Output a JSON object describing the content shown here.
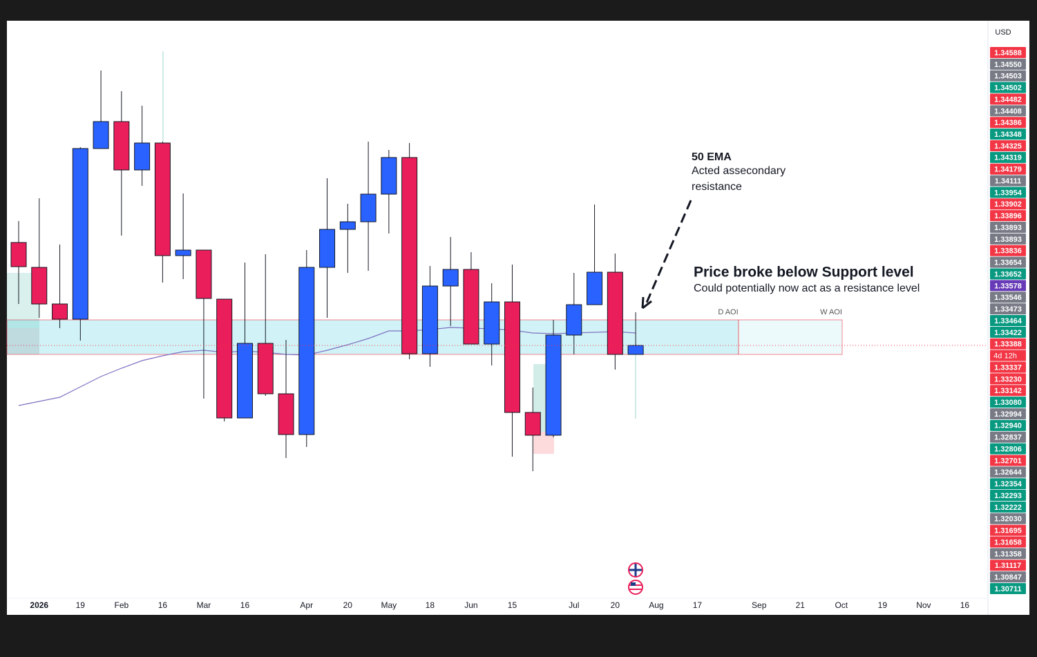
{
  "chart_data": {
    "type": "candlestick",
    "currency": "USD",
    "categories": [
      null,
      "2026",
      null,
      "19",
      null,
      "Feb",
      null,
      "16",
      null,
      "Mar",
      null,
      "16",
      null,
      null,
      "Apr",
      null,
      "20",
      null,
      "May",
      null,
      "18",
      null,
      "Jun",
      null,
      "15",
      null,
      null,
      "Jul",
      null,
      "20",
      null,
      "Aug",
      null,
      "17",
      null,
      null,
      "Sep",
      null,
      "21",
      null,
      "Oct",
      null,
      "19",
      null,
      "Nov",
      null,
      "16",
      null
    ],
    "open": [
      1.34582,
      1.34294,
      1.3387,
      1.33694,
      1.3567,
      1.35982,
      1.35422,
      1.35734,
      1.3443,
      1.34494,
      1.33926,
      1.3255,
      1.33414,
      1.3283,
      1.32358,
      1.34294,
      1.34734,
      1.34822,
      1.35142,
      1.35566,
      1.33294,
      1.34078,
      1.3427,
      1.33406,
      1.33894,
      1.32614,
      1.3235,
      1.3351,
      1.33862,
      1.34238,
      1.33286,
      null,
      null,
      null,
      null,
      null,
      null,
      null,
      null,
      null,
      null,
      null,
      null,
      null,
      null,
      null,
      null,
      null
    ],
    "high": [
      1.3483,
      1.35094,
      1.34558,
      1.35686,
      1.36574,
      1.36334,
      1.36166,
      1.3575,
      1.3515,
      1.34494,
      1.33926,
      1.3435,
      1.34446,
      1.33454,
      1.34494,
      1.35326,
      1.3503,
      1.3575,
      1.35654,
      1.35734,
      1.3431,
      1.34646,
      1.3447,
      1.3411,
      1.34326,
      1.32902,
      1.33686,
      1.3423,
      1.35022,
      1.34454,
      1.33774,
      null,
      null,
      null,
      null,
      null,
      null,
      null,
      null,
      null,
      null,
      null,
      null,
      null,
      null,
      null,
      null,
      null
    ],
    "low": [
      1.3387,
      1.3371,
      1.3359,
      1.33446,
      1.3567,
      1.34662,
      1.35238,
      1.34118,
      1.34158,
      1.32774,
      1.3251,
      1.3255,
      1.32806,
      1.32086,
      1.32214,
      1.3371,
      1.3423,
      1.34254,
      1.34686,
      1.3323,
      1.33142,
      1.33614,
      1.33406,
      1.33158,
      1.32102,
      1.31934,
      1.32326,
      1.33286,
      1.33862,
      1.3311,
      1.33286,
      null,
      null,
      null,
      null,
      null,
      null,
      null,
      null,
      null,
      null,
      null,
      null,
      null,
      null,
      null,
      null,
      null
    ],
    "close": [
      1.34302,
      1.3387,
      1.33694,
      1.3567,
      1.35982,
      1.35422,
      1.35734,
      1.3443,
      1.34494,
      1.33934,
      1.3255,
      1.33414,
      1.3283,
      1.32358,
      1.34294,
      1.34734,
      1.34822,
      1.35142,
      1.35566,
      1.33294,
      1.34078,
      1.3427,
      1.33406,
      1.33894,
      1.32614,
      1.3235,
      1.3351,
      1.33862,
      1.34238,
      1.33286,
      1.3339,
      null,
      null,
      null,
      null,
      null,
      null,
      null,
      null,
      null,
      null,
      null,
      null,
      null,
      null,
      null,
      null,
      null
    ],
    "ema": [
      1.32694,
      1.32742,
      1.3279,
      1.3291,
      1.3303,
      1.33126,
      1.33214,
      1.3327,
      1.33318,
      1.33334,
      1.3331,
      1.33326,
      1.3331,
      1.33286,
      1.33278,
      1.33334,
      1.33398,
      1.3347,
      1.33558,
      1.33558,
      1.33574,
      1.33598,
      1.3359,
      1.33582,
      1.33566,
      1.33534,
      1.33526,
      1.33534,
      1.33542,
      1.3355,
      1.33534,
      null,
      null,
      null,
      null,
      null,
      null,
      null,
      null,
      null,
      null,
      null,
      null,
      null,
      null,
      null,
      null,
      null
    ],
    "up_color": "#2962ff",
    "down_color": "#e91e5a",
    "ema_color": "#7e6fc0",
    "ylim": [
      1.3027,
      1.3715
    ],
    "zone": {
      "top": 1.33686,
      "bottom": 1.33286,
      "labels": [
        "D AOI",
        "W AOI"
      ]
    },
    "annotations": {
      "ema_title": "50 EMA",
      "ema_lines": [
        "Acted assecondary",
        "resistance"
      ],
      "headline": "Price broke below Support level",
      "subline": "Could potentially now act as a resistance level"
    },
    "countdown": "4d 12h",
    "price_tags": [
      {
        "value": 1.34588,
        "label": "1.34588",
        "color": "#f23645"
      },
      {
        "value": 1.3455,
        "label": "1.34550",
        "color": "#787b86"
      },
      {
        "value": 1.34503,
        "label": "1.34503",
        "color": "#787b86"
      },
      {
        "value": 1.34502,
        "label": "1.34502",
        "color": "#089981"
      },
      {
        "value": 1.34482,
        "label": "1.34482",
        "color": "#f23645"
      },
      {
        "value": 1.34408,
        "label": "1.34408",
        "color": "#787b86"
      },
      {
        "value": 1.34386,
        "label": "1.34386",
        "color": "#f23645"
      },
      {
        "value": 1.34348,
        "label": "1.34348",
        "color": "#089981"
      },
      {
        "value": 1.34325,
        "label": "1.34325",
        "color": "#f23645"
      },
      {
        "value": 1.34319,
        "label": "1.34319",
        "color": "#089981"
      },
      {
        "value": 1.34179,
        "label": "1.34179",
        "color": "#f23645"
      },
      {
        "value": 1.34111,
        "label": "1.34111",
        "color": "#787b86"
      },
      {
        "value": 1.33954,
        "label": "1.33954",
        "color": "#089981"
      },
      {
        "value": 1.33902,
        "label": "1.33902",
        "color": "#f23645"
      },
      {
        "value": 1.33896,
        "label": "1.33896",
        "color": "#f23645"
      },
      {
        "value": 1.33893,
        "label": "1.33893",
        "color": "#787b86"
      },
      {
        "value": 1.33893,
        "label": "1.33893",
        "color": "#787b86"
      },
      {
        "value": 1.33836,
        "label": "1.33836",
        "color": "#f23645"
      },
      {
        "value": 1.33654,
        "label": "1.33654",
        "color": "#787b86"
      },
      {
        "value": 1.33652,
        "label": "1.33652",
        "color": "#089981"
      },
      {
        "value": 1.33578,
        "label": "1.33578",
        "color": "#673ab7"
      },
      {
        "value": 1.33546,
        "label": "1.33546",
        "color": "#787b86"
      },
      {
        "value": 1.33473,
        "label": "1.33473",
        "color": "#787b86"
      },
      {
        "value": 1.33464,
        "label": "1.33464",
        "color": "#089981"
      },
      {
        "value": 1.33422,
        "label": "1.33422",
        "color": "#089981"
      },
      {
        "value": 1.33388,
        "label": "1.33388",
        "color": "#f23645"
      },
      {
        "value": 1.33337,
        "label": "1.33337",
        "color": "#f23645"
      },
      {
        "value": 1.3323,
        "label": "1.33230",
        "color": "#f23645"
      },
      {
        "value": 1.33142,
        "label": "1.33142",
        "color": "#f23645"
      },
      {
        "value": 1.3308,
        "label": "1.33080",
        "color": "#089981"
      },
      {
        "value": 1.32994,
        "label": "1.32994",
        "color": "#787b86"
      },
      {
        "value": 1.3294,
        "label": "1.32940",
        "color": "#089981"
      },
      {
        "value": 1.32837,
        "label": "1.32837",
        "color": "#787b86"
      },
      {
        "value": 1.32806,
        "label": "1.32806",
        "color": "#089981"
      },
      {
        "value": 1.32701,
        "label": "1.32701",
        "color": "#f23645"
      },
      {
        "value": 1.32644,
        "label": "1.32644",
        "color": "#787b86"
      },
      {
        "value": 1.32354,
        "label": "1.32354",
        "color": "#089981"
      },
      {
        "value": 1.32293,
        "label": "1.32293",
        "color": "#089981"
      },
      {
        "value": 1.32222,
        "label": "1.32222",
        "color": "#089981"
      },
      {
        "value": 1.3203,
        "label": "1.32030",
        "color": "#787b86"
      },
      {
        "value": 1.31695,
        "label": "1.31695",
        "color": "#f23645"
      },
      {
        "value": 1.31658,
        "label": "1.31658",
        "color": "#f23645"
      },
      {
        "value": 1.31358,
        "label": "1.31358",
        "color": "#787b86"
      },
      {
        "value": 1.31117,
        "label": "1.31117",
        "color": "#f23645"
      },
      {
        "value": 1.30847,
        "label": "1.30847",
        "color": "#787b86"
      },
      {
        "value": 1.30711,
        "label": "1.30711",
        "color": "#089981"
      }
    ]
  }
}
